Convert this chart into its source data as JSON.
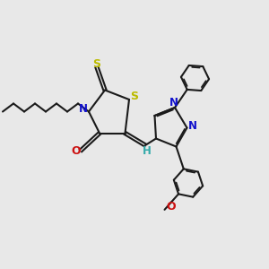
{
  "bg_color": "#e8e8e8",
  "bond_color": "#1a1a1a",
  "S_color": "#bbbb00",
  "N_color": "#1111cc",
  "O_color": "#cc1111",
  "H_color": "#33aaaa",
  "lw": 1.5,
  "figsize": [
    3.0,
    3.0
  ],
  "dpi": 100,
  "xlim": [
    0,
    10
  ],
  "ylim": [
    0,
    10
  ]
}
